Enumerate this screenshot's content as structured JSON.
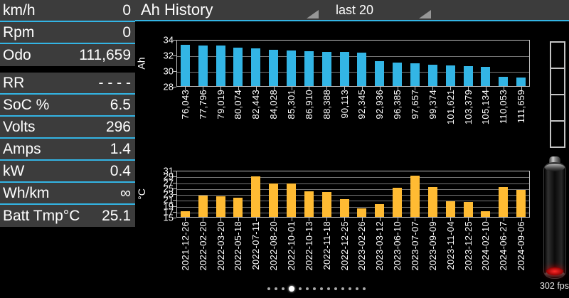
{
  "header": {
    "title": "Ah History",
    "range": "last 20"
  },
  "sidebar": {
    "gap_after_index": 2,
    "rows": [
      {
        "label": "km/h",
        "value": "0"
      },
      {
        "label": "Rpm",
        "value": "0"
      },
      {
        "label": "Odo",
        "value": "111,659"
      },
      {
        "label": "RR",
        "value": "- - - -"
      },
      {
        "label": "SoC %",
        "value": "6.5"
      },
      {
        "label": "Volts",
        "value": "296"
      },
      {
        "label": "Amps",
        "value": "1.4"
      },
      {
        "label": "kW",
        "value": "0.4"
      },
      {
        "label": "Wh/km",
        "value": "∞"
      },
      {
        "label": "Batt Tmp°C",
        "value": "25.1"
      }
    ]
  },
  "chart_data": [
    {
      "type": "bar",
      "name": "ah-history",
      "title": "Ah History",
      "ylabel": "Ah",
      "xlabel": "",
      "ylim": [
        28,
        34
      ],
      "ytick_step": 2,
      "grid": true,
      "color": "#33B5E5",
      "categories": [
        "76,043",
        "77,796",
        "79,019",
        "80,074",
        "82,443",
        "84,028",
        "85,301",
        "86,910",
        "88,388",
        "90,113",
        "92,345",
        "92,936",
        "96,385",
        "97,657",
        "99,374",
        "101,621",
        "103,379",
        "105,134",
        "110,053",
        "111,659"
      ],
      "values": [
        33.4,
        33.3,
        33.3,
        33.1,
        33.0,
        32.8,
        32.7,
        32.6,
        32.5,
        32.5,
        32.4,
        31.3,
        31.1,
        31.0,
        30.8,
        30.7,
        30.6,
        30.5,
        29.2,
        29.1
      ]
    },
    {
      "type": "bar",
      "name": "batt-temp",
      "title": "",
      "ylabel": "°C",
      "xlabel": "",
      "ylim": [
        15,
        31
      ],
      "ytick_step": 2,
      "grid": true,
      "color": "#FFBB33",
      "categories": [
        "2021-12-26",
        "2022-02-20",
        "2022-03-20",
        "2022-05-18",
        "2022-07-11",
        "2022-08-20",
        "2022-10-01",
        "2022-10-13",
        "2022-11-18",
        "2022-12-25",
        "2023-02-26",
        "2023-03-12",
        "2023-06-10",
        "2023-07-07",
        "2023-09-09",
        "2023-11-04",
        "2023-12-25",
        "2024-02-10",
        "2024-06-27",
        "2024-09-06"
      ],
      "values": [
        17.1,
        22.4,
        22.2,
        21.7,
        29.3,
        26.8,
        26.8,
        23.9,
        23.8,
        21.2,
        17.9,
        19.4,
        25.2,
        29.6,
        25.6,
        20.6,
        20.3,
        17.1,
        25.4,
        24.6
      ]
    }
  ],
  "right_panel": {
    "segment_gauge_cells": 4
  },
  "footer": {
    "fps": "302 fps",
    "page_dots": {
      "count": 14,
      "active_index": 3
    }
  },
  "colors": {
    "accent_cyan": "#33B5E5",
    "bar_blue": "#33B5E5",
    "bar_orange": "#FFBB33",
    "panel_gray": "#3C3C3C",
    "grid_gray": "#777777",
    "axis_gray": "#BDBDBD",
    "battery_red": "#CC0000"
  }
}
